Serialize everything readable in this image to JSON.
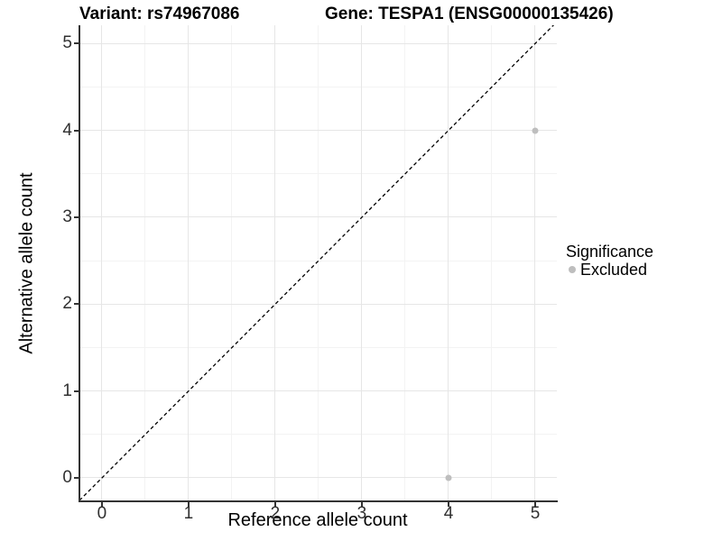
{
  "titles": {
    "left": "Variant: rs74967086",
    "right": "Gene: TESPA1 (ENSG00000135426)"
  },
  "legend": {
    "title": "Significance",
    "items": [
      {
        "label": "Excluded",
        "color": "#bebebe"
      }
    ]
  },
  "chart_data": {
    "type": "scatter",
    "xlabel": "Reference allele count",
    "ylabel": "Alternative allele count",
    "xlim": [
      -0.26,
      5.25
    ],
    "ylim": [
      -0.27,
      5.21
    ],
    "x_ticks": [
      0,
      1,
      2,
      3,
      4,
      5
    ],
    "y_ticks": [
      0,
      1,
      2,
      3,
      4,
      5
    ],
    "x_minor_ticks": [
      0.5,
      1.5,
      2.5,
      3.5,
      4.5
    ],
    "y_minor_ticks": [
      0.5,
      1.5,
      2.5,
      3.5,
      4.5
    ],
    "grid": true,
    "legend_position": "right",
    "series": [
      {
        "name": "Excluded",
        "color": "#bebebe",
        "points": [
          {
            "x": 5,
            "y": 4
          },
          {
            "x": 4,
            "y": 0
          }
        ]
      }
    ],
    "reference_line": {
      "kind": "identity",
      "equation": "y = x",
      "style": "dashed",
      "color": "#000000"
    }
  },
  "colors": {
    "background": "#ffffff",
    "grid_major": "#e6e6e6",
    "grid_minor": "#f3f3f3",
    "axis_line": "#333333",
    "tick_text": "#303030",
    "point": "#bebebe"
  }
}
